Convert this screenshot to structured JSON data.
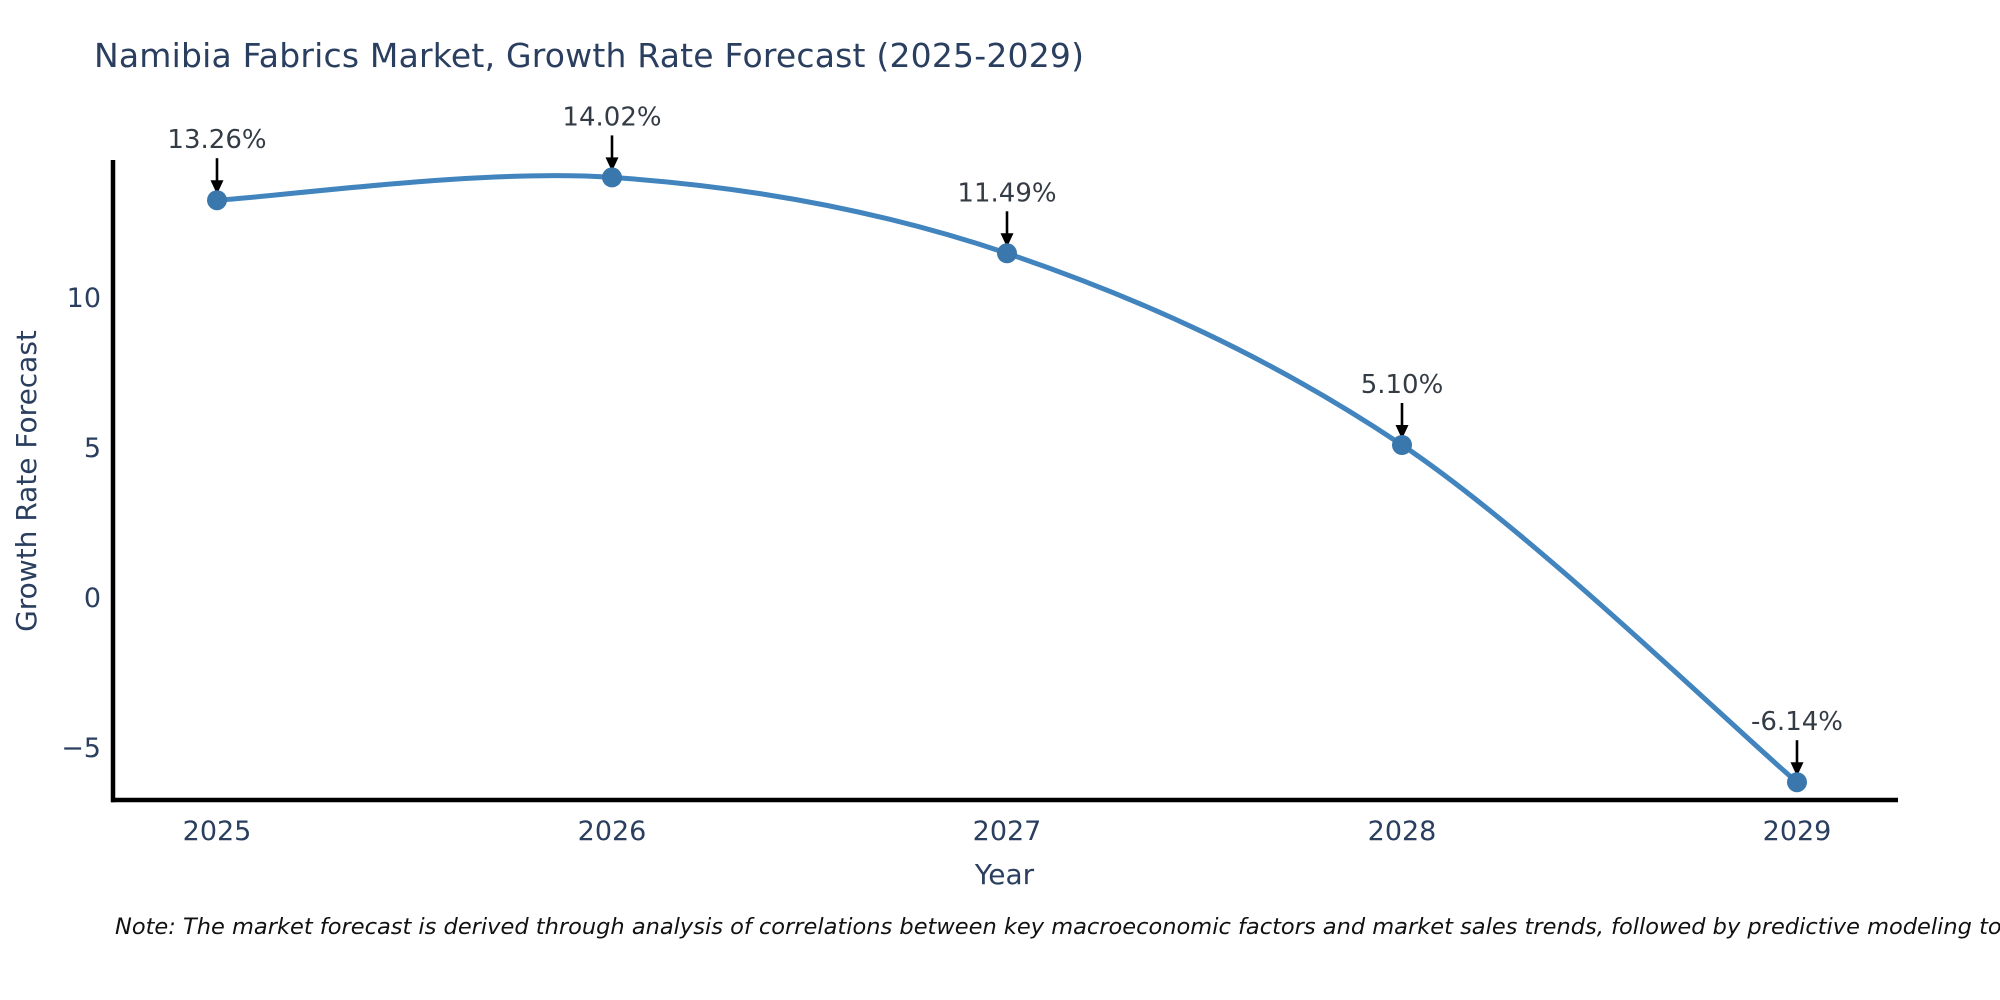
{
  "title": "Namibia Fabrics Market, Growth Rate Forecast (2025-2029)",
  "note": "Note: The market forecast is derived through analysis of correlations between key macroeconomic factors and market sales trends, followed by predictive modeling to project future sales",
  "chart_data": {
    "type": "line",
    "title": "Namibia Fabrics Market, Growth Rate Forecast (2025-2029)",
    "x": [
      2025,
      2026,
      2027,
      2028,
      2029
    ],
    "xtick_labels": [
      "2025",
      "2026",
      "2027",
      "2028",
      "2029"
    ],
    "values": [
      13.26,
      14.02,
      11.49,
      5.1,
      -6.14
    ],
    "point_labels": [
      "13.26%",
      "14.02%",
      "11.49%",
      "5.10%",
      "-6.14%"
    ],
    "xlabel": "Year",
    "ylabel": "Growth Rate Forecast",
    "yticks": [
      10,
      5,
      0,
      -5
    ],
    "ytick_labels": [
      "10",
      "5",
      "0",
      "−5"
    ],
    "ylim": [
      -6.9,
      14.7
    ],
    "line_shape": "spline",
    "grid": false,
    "legend": "none",
    "colors": {
      "line": "#4184be",
      "marker": "#3a77ad",
      "axis": "#000000",
      "tick_text": "#2a3f5f",
      "axis_title_text": "#2a3f5f",
      "annotation_text": "#333b44",
      "annotation_arrow": "#000000",
      "title_text": "#2a3f5f",
      "background": "#ffffff"
    }
  }
}
